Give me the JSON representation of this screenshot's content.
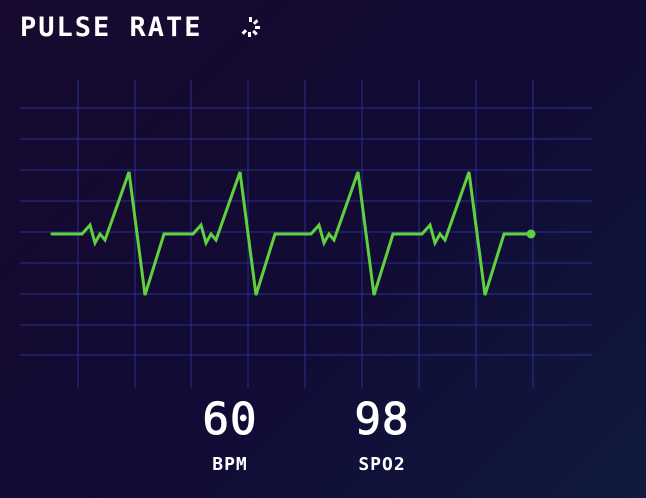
{
  "header": {
    "title": "PULSE RATE",
    "spinner_icon": "loading-spinner-icon"
  },
  "readouts": {
    "bpm": {
      "value": "60",
      "label": "BPM"
    },
    "spo2": {
      "value": "98",
      "label": "SPO2"
    }
  },
  "colors": {
    "grid": "#2a2f8f",
    "trace": "#5fd13d",
    "text": "#ffffff",
    "background": "#150c33"
  }
}
